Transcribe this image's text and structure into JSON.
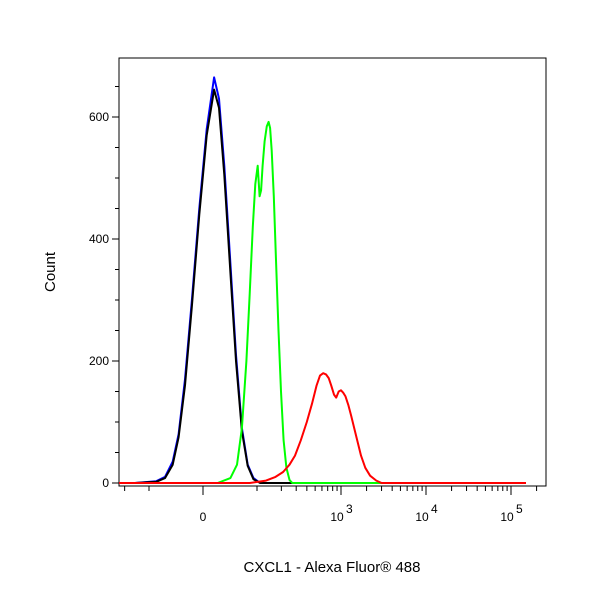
{
  "chart_data": {
    "type": "line",
    "title": "",
    "xlabel": "CXCL1 - Alexa Fluor® 488",
    "ylabel": "Count",
    "x_scale": "biexponential",
    "x_ticks": [
      {
        "value": 0,
        "base": "0",
        "exp": ""
      },
      {
        "value": 1000,
        "base": "10",
        "exp": "3"
      },
      {
        "value": 10000,
        "base": "10",
        "exp": "4"
      },
      {
        "value": 100000,
        "base": "10",
        "exp": "5"
      }
    ],
    "y_ticks": [
      0,
      200,
      400,
      600
    ],
    "ylim": [
      0,
      700
    ],
    "grid": false,
    "legend": "none",
    "series": [
      {
        "color": "#0000ff",
        "points": [
          [
            -300,
            0
          ],
          [
            -150,
            0
          ],
          [
            -80,
            3
          ],
          [
            -60,
            10
          ],
          [
            -45,
            35
          ],
          [
            -35,
            80
          ],
          [
            -25,
            170
          ],
          [
            -15,
            300
          ],
          [
            -5,
            450
          ],
          [
            5,
            580
          ],
          [
            15,
            665
          ],
          [
            22,
            630
          ],
          [
            30,
            520
          ],
          [
            40,
            360
          ],
          [
            50,
            210
          ],
          [
            62,
            90
          ],
          [
            75,
            30
          ],
          [
            90,
            8
          ],
          [
            110,
            0
          ],
          [
            3000,
            0
          ],
          [
            150000,
            0
          ]
        ]
      },
      {
        "color": "#000000",
        "points": [
          [
            -300,
            0
          ],
          [
            -150,
            0
          ],
          [
            -80,
            2
          ],
          [
            -60,
            8
          ],
          [
            -45,
            30
          ],
          [
            -35,
            75
          ],
          [
            -25,
            160
          ],
          [
            -15,
            290
          ],
          [
            -5,
            440
          ],
          [
            5,
            570
          ],
          [
            15,
            645
          ],
          [
            22,
            615
          ],
          [
            30,
            505
          ],
          [
            40,
            345
          ],
          [
            50,
            200
          ],
          [
            62,
            85
          ],
          [
            75,
            28
          ],
          [
            90,
            6
          ],
          [
            110,
            0
          ],
          [
            3000,
            0
          ],
          [
            150000,
            0
          ]
        ]
      },
      {
        "color": "#00ff00",
        "points": [
          [
            -300,
            0
          ],
          [
            20,
            0
          ],
          [
            40,
            8
          ],
          [
            52,
            30
          ],
          [
            62,
            90
          ],
          [
            72,
            200
          ],
          [
            80,
            310
          ],
          [
            88,
            420
          ],
          [
            95,
            490
          ],
          [
            102,
            520
          ],
          [
            108,
            470
          ],
          [
            113,
            480
          ],
          [
            118,
            520
          ],
          [
            125,
            560
          ],
          [
            133,
            585
          ],
          [
            140,
            592
          ],
          [
            146,
            582
          ],
          [
            153,
            545
          ],
          [
            162,
            470
          ],
          [
            172,
            370
          ],
          [
            185,
            250
          ],
          [
            198,
            150
          ],
          [
            213,
            70
          ],
          [
            230,
            25
          ],
          [
            250,
            5
          ],
          [
            270,
            0
          ],
          [
            3000,
            0
          ],
          [
            150000,
            0
          ]
        ]
      },
      {
        "color": "#ff0000",
        "points": [
          [
            -300,
            0
          ],
          [
            80,
            0
          ],
          [
            130,
            4
          ],
          [
            170,
            10
          ],
          [
            210,
            18
          ],
          [
            250,
            30
          ],
          [
            290,
            45
          ],
          [
            340,
            70
          ],
          [
            400,
            100
          ],
          [
            460,
            130
          ],
          [
            520,
            160
          ],
          [
            570,
            176
          ],
          [
            620,
            180
          ],
          [
            670,
            178
          ],
          [
            720,
            172
          ],
          [
            770,
            160
          ],
          [
            830,
            145
          ],
          [
            880,
            140
          ],
          [
            940,
            150
          ],
          [
            1000,
            152
          ],
          [
            1060,
            148
          ],
          [
            1130,
            142
          ],
          [
            1220,
            128
          ],
          [
            1320,
            110
          ],
          [
            1420,
            92
          ],
          [
            1550,
            70
          ],
          [
            1720,
            45
          ],
          [
            1930,
            25
          ],
          [
            2200,
            12
          ],
          [
            2600,
            4
          ],
          [
            3000,
            0
          ],
          [
            150000,
            0
          ]
        ]
      }
    ]
  }
}
